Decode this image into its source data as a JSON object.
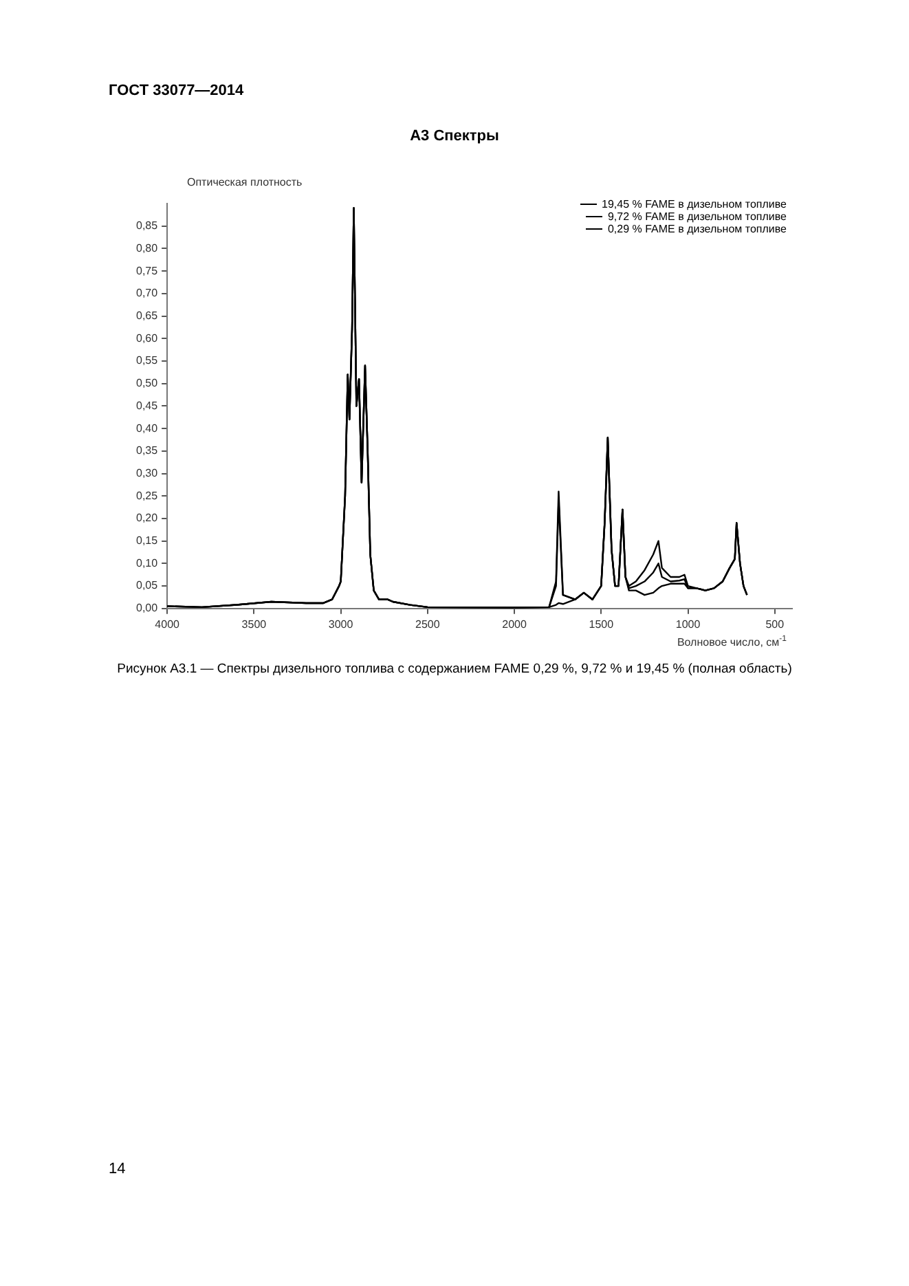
{
  "chart_data": {
    "type": "line",
    "title": "А3 Спектры",
    "xlabel": "Волновое число, см$^{-1}$",
    "ylabel": "Оптическая плотность",
    "annotations": [
      "ГОСТ 33077—2014",
      "Рисунок А3.1 — Спектры дизельного топлива с содержанием FAME 0,29 %, 9,72 % и 19,45 % (полная область)",
      "14"
    ],
    "xlim": [
      4000,
      400
    ],
    "ylim": [
      0,
      0.9
    ],
    "xticks": [
      4000,
      3500,
      3000,
      2500,
      2000,
      1500,
      1000,
      500
    ],
    "yticks": [
      {
        "value": 0,
        "label": "0,00"
      },
      {
        "value": 0.05,
        "label": "0,05"
      },
      {
        "value": 0.1,
        "label": "0,10"
      },
      {
        "value": 0.15,
        "label": "0,15"
      },
      {
        "value": 0.2,
        "label": "0,20"
      },
      {
        "value": 0.25,
        "label": "0,25"
      },
      {
        "value": 0.3,
        "label": "0,30"
      },
      {
        "value": 0.35,
        "label": "0,35"
      },
      {
        "value": 0.4,
        "label": "0,40"
      },
      {
        "value": 0.45,
        "label": "0,45"
      },
      {
        "value": 0.5,
        "label": "0,50"
      },
      {
        "value": 0.55,
        "label": "0,55"
      },
      {
        "value": 0.6,
        "label": "0,60"
      },
      {
        "value": 0.65,
        "label": "0,65"
      },
      {
        "value": 0.7,
        "label": "0,70"
      },
      {
        "value": 0.75,
        "label": "0,75"
      },
      {
        "value": 0.8,
        "label": "0,80"
      },
      {
        "value": 0.85,
        "label": "0,85"
      }
    ],
    "grid": false,
    "legend": "top right",
    "marker": "none",
    "line_style": "solid",
    "x": [
      4000,
      3800,
      3600,
      3400,
      3200,
      3100,
      3050,
      3010,
      3000,
      2975,
      2960,
      2950,
      2935,
      2925,
      2910,
      2895,
      2880,
      2860,
      2845,
      2830,
      2810,
      2780,
      2730,
      2700,
      2600,
      2500,
      2000,
      1800,
      1760,
      1745,
      1720,
      1650,
      1600,
      1550,
      1500,
      1480,
      1462,
      1440,
      1420,
      1400,
      1377,
      1360,
      1340,
      1300,
      1250,
      1200,
      1170,
      1150,
      1100,
      1050,
      1020,
      1000,
      950,
      900,
      850,
      800,
      760,
      730,
      720,
      700,
      680,
      660
    ],
    "series": [
      {
        "name": "19,45 % FAME в дизельном топливе",
        "color": "#000000",
        "values": [
          0.005,
          0.003,
          0.008,
          0.015,
          0.012,
          0.012,
          0.02,
          0.05,
          0.06,
          0.25,
          0.52,
          0.42,
          0.62,
          0.89,
          0.45,
          0.51,
          0.28,
          0.54,
          0.35,
          0.12,
          0.04,
          0.02,
          0.02,
          0.015,
          0.008,
          0.003,
          0.002,
          0.003,
          0.06,
          0.26,
          0.03,
          0.02,
          0.035,
          0.02,
          0.05,
          0.19,
          0.38,
          0.13,
          0.05,
          0.05,
          0.22,
          0.07,
          0.05,
          0.06,
          0.085,
          0.12,
          0.15,
          0.09,
          0.07,
          0.07,
          0.075,
          0.05,
          0.045,
          0.04,
          0.045,
          0.06,
          0.09,
          0.11,
          0.19,
          0.1,
          0.05,
          0.03
        ]
      },
      {
        "name": "9,72 % FAME в дизельном топливе",
        "color": "#000000",
        "values": [
          0.005,
          0.003,
          0.008,
          0.015,
          0.012,
          0.012,
          0.02,
          0.05,
          0.06,
          0.25,
          0.52,
          0.42,
          0.62,
          0.89,
          0.45,
          0.51,
          0.28,
          0.54,
          0.35,
          0.12,
          0.04,
          0.02,
          0.02,
          0.015,
          0.008,
          0.003,
          0.002,
          0.003,
          0.05,
          0.24,
          0.03,
          0.02,
          0.035,
          0.02,
          0.05,
          0.19,
          0.38,
          0.13,
          0.05,
          0.05,
          0.22,
          0.07,
          0.045,
          0.05,
          0.06,
          0.08,
          0.1,
          0.07,
          0.06,
          0.062,
          0.065,
          0.045,
          0.045,
          0.04,
          0.045,
          0.06,
          0.09,
          0.11,
          0.19,
          0.1,
          0.05,
          0.03
        ]
      },
      {
        "name": "0,29 % FAME в дизельном топливе",
        "color": "#000000",
        "values": [
          0.005,
          0.003,
          0.008,
          0.015,
          0.012,
          0.012,
          0.02,
          0.05,
          0.06,
          0.25,
          0.52,
          0.42,
          0.62,
          0.89,
          0.45,
          0.51,
          0.28,
          0.54,
          0.35,
          0.12,
          0.04,
          0.02,
          0.02,
          0.015,
          0.008,
          0.003,
          0.002,
          0.003,
          0.008,
          0.012,
          0.01,
          0.02,
          0.035,
          0.02,
          0.05,
          0.19,
          0.38,
          0.13,
          0.05,
          0.05,
          0.22,
          0.07,
          0.04,
          0.04,
          0.03,
          0.035,
          0.045,
          0.05,
          0.055,
          0.055,
          0.055,
          0.045,
          0.045,
          0.04,
          0.045,
          0.06,
          0.09,
          0.11,
          0.19,
          0.1,
          0.05,
          0.03
        ]
      }
    ]
  }
}
